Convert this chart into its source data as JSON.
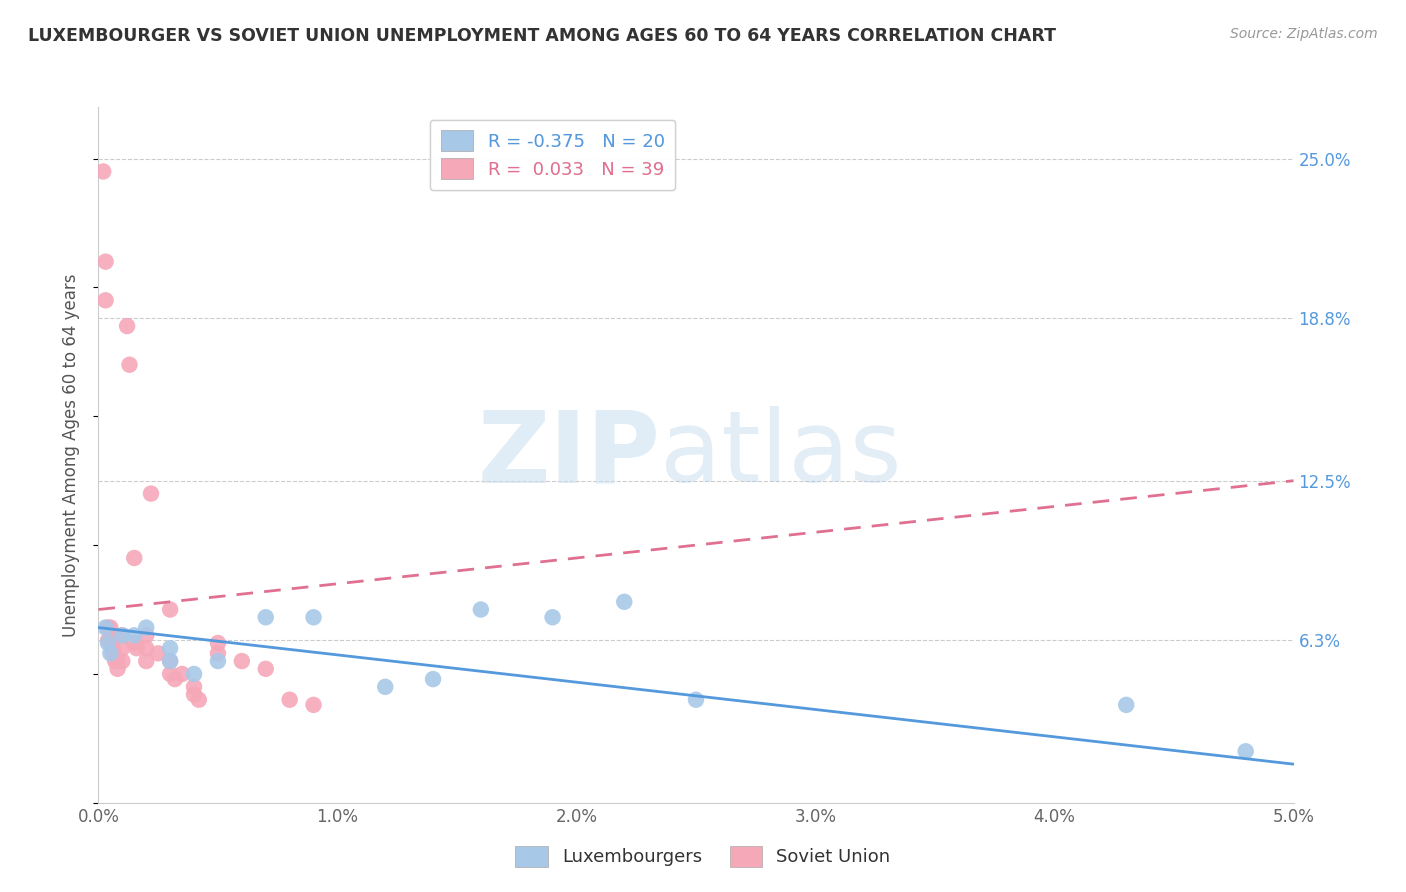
{
  "title": "LUXEMBOURGER VS SOVIET UNION UNEMPLOYMENT AMONG AGES 60 TO 64 YEARS CORRELATION CHART",
  "source": "Source: ZipAtlas.com",
  "ylabel": "Unemployment Among Ages 60 to 64 years",
  "xlim": [
    0.0,
    0.05
  ],
  "ylim": [
    0.0,
    0.27
  ],
  "xticks": [
    0.0,
    0.01,
    0.02,
    0.03,
    0.04,
    0.05
  ],
  "xticklabels": [
    "0.0%",
    "1.0%",
    "2.0%",
    "3.0%",
    "4.0%",
    "5.0%"
  ],
  "yticks_right": [
    0.0,
    0.063,
    0.125,
    0.188,
    0.25
  ],
  "yticklabels_right": [
    "",
    "6.3%",
    "12.5%",
    "18.8%",
    "25.0%"
  ],
  "legend_r_blue": "-0.375",
  "legend_n_blue": "20",
  "legend_r_pink": "0.033",
  "legend_n_pink": "39",
  "blue_color": "#a8c8e8",
  "pink_color": "#f5a8b8",
  "blue_line_color": "#5599dd",
  "pink_line_color": "#e07090",
  "watermark_zip": "ZIP",
  "watermark_atlas": "atlas",
  "blue_scatter_x": [
    0.0003,
    0.0004,
    0.0005,
    0.001,
    0.0015,
    0.002,
    0.003,
    0.003,
    0.004,
    0.005,
    0.007,
    0.009,
    0.012,
    0.014,
    0.016,
    0.019,
    0.022,
    0.025,
    0.043,
    0.048
  ],
  "blue_scatter_y": [
    0.068,
    0.062,
    0.058,
    0.065,
    0.065,
    0.068,
    0.06,
    0.055,
    0.05,
    0.055,
    0.072,
    0.072,
    0.045,
    0.048,
    0.075,
    0.072,
    0.078,
    0.04,
    0.038,
    0.02
  ],
  "pink_scatter_x": [
    0.0002,
    0.0003,
    0.0003,
    0.0004,
    0.0004,
    0.0005,
    0.0005,
    0.0006,
    0.0006,
    0.0007,
    0.0008,
    0.0008,
    0.001,
    0.001,
    0.001,
    0.0012,
    0.0013,
    0.0015,
    0.0016,
    0.002,
    0.002,
    0.002,
    0.0022,
    0.0025,
    0.003,
    0.003,
    0.0032,
    0.0035,
    0.004,
    0.004,
    0.0042,
    0.005,
    0.005,
    0.006,
    0.007,
    0.008,
    0.009,
    0.0015,
    0.003
  ],
  "pink_scatter_y": [
    0.245,
    0.21,
    0.195,
    0.068,
    0.063,
    0.068,
    0.063,
    0.06,
    0.058,
    0.055,
    0.055,
    0.052,
    0.065,
    0.06,
    0.055,
    0.185,
    0.17,
    0.062,
    0.06,
    0.065,
    0.06,
    0.055,
    0.12,
    0.058,
    0.055,
    0.05,
    0.048,
    0.05,
    0.045,
    0.042,
    0.04,
    0.062,
    0.058,
    0.055,
    0.052,
    0.04,
    0.038,
    0.095,
    0.075
  ],
  "blue_line_x0": 0.0,
  "blue_line_y0": 0.068,
  "blue_line_x1": 0.05,
  "blue_line_y1": 0.015,
  "pink_line_x0": 0.0,
  "pink_line_y0": 0.075,
  "pink_line_x1": 0.05,
  "pink_line_y1": 0.125
}
